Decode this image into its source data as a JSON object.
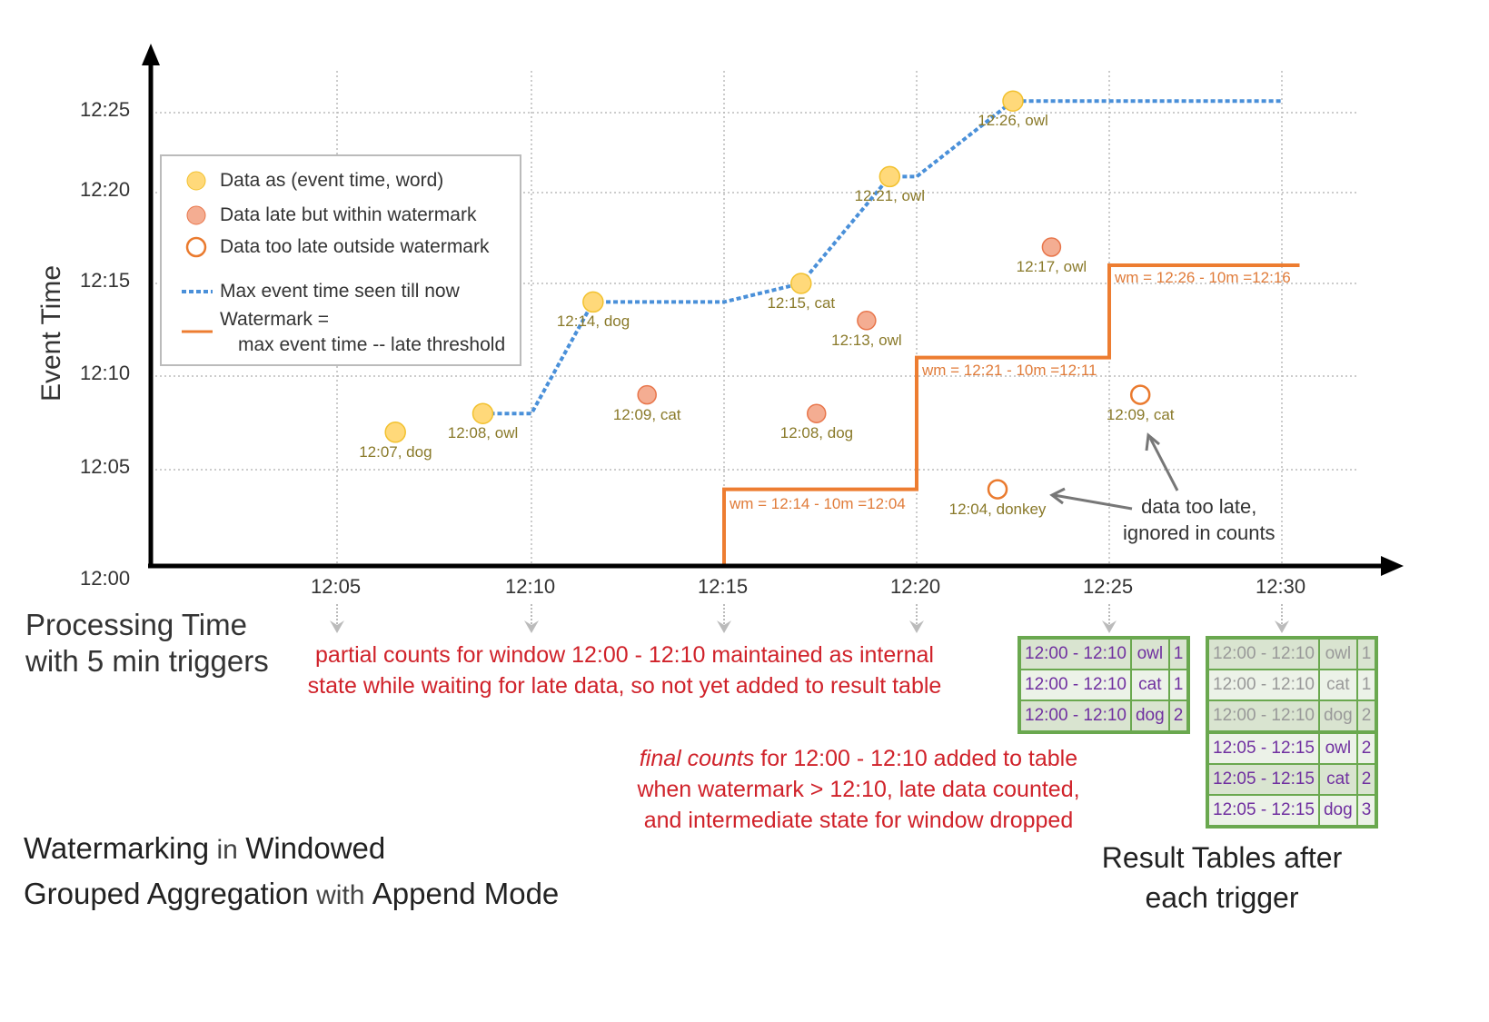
{
  "colors": {
    "on_time_fill": "#ffd97a",
    "on_time_stroke": "#f2c12e",
    "late_fill": "#f4ad92",
    "late_stroke": "#e8754a",
    "too_late": "#ea7a2e",
    "max_line": "#4a90d9",
    "watermark": "#ed7d31",
    "point_label": "#8a7a2a",
    "wm_label": "#e07b39",
    "annotation_red": "#d0222a",
    "table_border": "#6aa84f",
    "table_text": "#7030a0"
  },
  "y_axis": {
    "label": "Event Time",
    "ticks": [
      "12:00",
      "12:05",
      "12:10",
      "12:15",
      "12:20",
      "12:25"
    ]
  },
  "x_axis": {
    "label_line1": "Processing Time",
    "label_line2": "with 5 min triggers",
    "ticks": [
      "12:05",
      "12:10",
      "12:15",
      "12:20",
      "12:25",
      "12:30"
    ]
  },
  "legend": {
    "on_time": "Data as (event time, word)",
    "late": "Data late but within watermark",
    "too_late": "Data too late outside watermark",
    "max": "Max event time seen till now",
    "wm_line1": "Watermark =",
    "wm_line2": "max event time -- late threshold"
  },
  "points": [
    {
      "label": "12:07, dog",
      "kind": "on_time",
      "proc": 6.5,
      "event": 7
    },
    {
      "label": "12:08, owl",
      "kind": "on_time",
      "proc": 8.75,
      "event": 8
    },
    {
      "label": "12:14, dog",
      "kind": "on_time",
      "proc": 11.6,
      "event": 14
    },
    {
      "label": "12:09, cat",
      "kind": "late",
      "proc": 13,
      "event": 9
    },
    {
      "label": "12:15, cat",
      "kind": "on_time",
      "proc": 17,
      "event": 15
    },
    {
      "label": "12:08, dog",
      "kind": "late",
      "proc": 17.4,
      "event": 8
    },
    {
      "label": "12:13, owl",
      "kind": "late",
      "proc": 18.7,
      "event": 13
    },
    {
      "label": "12:21, owl",
      "kind": "on_time",
      "proc": 19.3,
      "event": 21
    },
    {
      "label": "12:26, owl",
      "kind": "on_time",
      "proc": 22.5,
      "event": 26
    },
    {
      "label": "12:17, owl",
      "kind": "late",
      "proc": 23.5,
      "event": 17
    },
    {
      "label": "12:04, donkey",
      "kind": "too_late",
      "proc": 22.1,
      "event": 4
    },
    {
      "label": "12:09, cat",
      "kind": "too_late",
      "proc": 25.9,
      "event": 9
    }
  ],
  "max_event_line": [
    [
      8.75,
      8
    ],
    [
      10,
      8
    ],
    [
      11.6,
      14
    ],
    [
      15,
      14
    ],
    [
      17,
      15
    ],
    [
      19.3,
      21
    ],
    [
      20,
      21
    ],
    [
      22.5,
      26
    ],
    [
      30,
      26
    ]
  ],
  "watermark_steps": [
    {
      "from": 15,
      "to": 20,
      "value": 4
    },
    {
      "from": 20,
      "to": 25,
      "value": 11
    },
    {
      "from": 25,
      "to": 30.5,
      "value": 16
    }
  ],
  "watermark_labels": [
    "wm = 12:14 - 10m =12:04",
    "wm = 12:21 - 10m =12:11",
    "wm = 12:26 - 10m =12:16"
  ],
  "annotations": {
    "too_late_line1": "data too late,",
    "too_late_line2": "ignored in counts",
    "partial_line1": "partial counts for window 12:00 - 12:10 maintained as internal",
    "partial_line2": "state while waiting for late data, so not yet added  to result table",
    "final_em": "final counts",
    "final_line1_rest": " for 12:00 - 12:10 added to table",
    "final_line2": "when watermark > 12:10, late data counted,",
    "final_line3": "and intermediate state for window dropped"
  },
  "result_tables": {
    "caption_line1": "Result Tables after",
    "caption_line2": "each trigger",
    "table_1225": [
      [
        "12:00 - 12:10",
        "owl",
        "1"
      ],
      [
        "12:00 - 12:10",
        "cat",
        "1"
      ],
      [
        "12:00 - 12:10",
        "dog",
        "2"
      ]
    ],
    "table_1230": [
      [
        "12:00 - 12:10",
        "owl",
        "1"
      ],
      [
        "12:00 - 12:10",
        "cat",
        "1"
      ],
      [
        "12:00 - 12:10",
        "dog",
        "2"
      ],
      [
        "12:05 - 12:15",
        "owl",
        "2"
      ],
      [
        "12:05 - 12:15",
        "cat",
        "2"
      ],
      [
        "12:05 - 12:15",
        "dog",
        "3"
      ]
    ]
  },
  "title": {
    "w1": "Watermarking",
    "w2": " in ",
    "w3": "Windowed",
    "w4": "Grouped Aggregation",
    "w5": " with ",
    "w6": "Append Mode"
  }
}
